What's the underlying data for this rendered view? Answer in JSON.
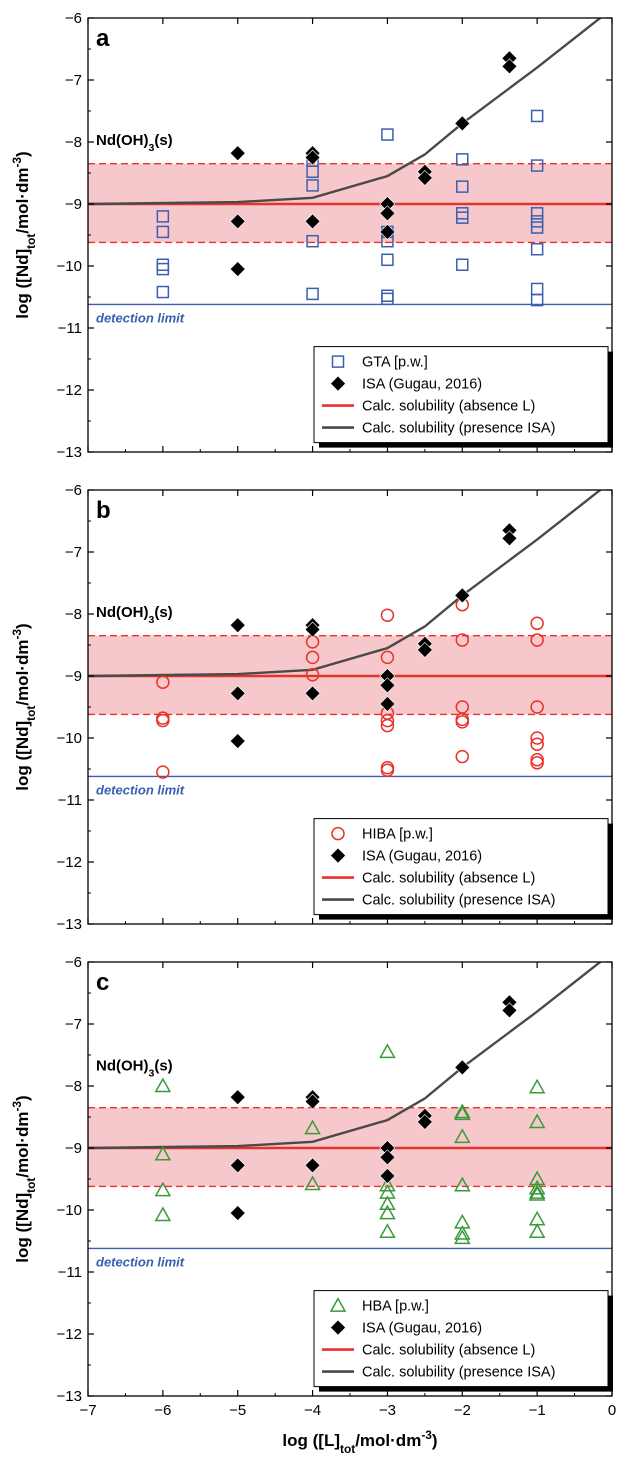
{
  "figure": {
    "xlabel": "log ([L]tot/mol·dm-3)",
    "ylabel": "log ([Nd]tot/mol·dm-3)",
    "colors": {
      "band": "#f6c8cc",
      "red_line": "#e8332a",
      "calc_presence": "#4a4a4a",
      "detection": "#3a5fb0",
      "isa": "#000000",
      "gta": "#3a5fb0",
      "hiba": "#e8332a",
      "hba": "#3a9a3a"
    }
  },
  "chart_data": [
    {
      "type": "scatter",
      "panel_label": "a",
      "xlim": [
        -7,
        0
      ],
      "ylim": [
        -13,
        -6
      ],
      "x_ticks": [
        -7,
        -6,
        -5,
        -4,
        -3,
        -2,
        -1,
        0
      ],
      "y_ticks": [
        -6,
        -7,
        -8,
        -9,
        -10,
        -11,
        -12,
        -13
      ],
      "annotations": {
        "solid_phase": "Nd(OH)3(s)",
        "detection_limit": "detection limit"
      },
      "reference_lines": {
        "calc_absence": -9.0,
        "band_upper": -8.35,
        "band_lower": -9.62,
        "detection_limit": -10.62
      },
      "legend_position": "bottom-right",
      "series": [
        {
          "name": "GTA [p.w.]",
          "marker": "square-open",
          "color": "#3a5fb0",
          "points": [
            [
              -6,
              -9.2
            ],
            [
              -6,
              -9.45
            ],
            [
              -6,
              -9.98
            ],
            [
              -6,
              -10.05
            ],
            [
              -6,
              -10.42
            ],
            [
              -4,
              -8.3
            ],
            [
              -4,
              -8.48
            ],
            [
              -4,
              -8.7
            ],
            [
              -4,
              -9.6
            ],
            [
              -4,
              -10.45
            ],
            [
              -3,
              -7.88
            ],
            [
              -3,
              -9.45
            ],
            [
              -3,
              -9.6
            ],
            [
              -3,
              -9.9
            ],
            [
              -3,
              -10.48
            ],
            [
              -3,
              -10.53
            ],
            [
              -2,
              -8.28
            ],
            [
              -2,
              -8.72
            ],
            [
              -2,
              -9.15
            ],
            [
              -2,
              -9.22
            ],
            [
              -2,
              -9.98
            ],
            [
              -1,
              -7.58
            ],
            [
              -1,
              -8.38
            ],
            [
              -1,
              -9.15
            ],
            [
              -1,
              -9.28
            ],
            [
              -1,
              -9.38
            ],
            [
              -1,
              -9.73
            ],
            [
              -1,
              -10.37
            ],
            [
              -1,
              -10.55
            ]
          ]
        },
        {
          "name": "ISA (Gugau, 2016)",
          "marker": "diamond-filled",
          "color": "#000000",
          "points": [
            [
              -5,
              -8.18
            ],
            [
              -5,
              -9.28
            ],
            [
              -5,
              -10.05
            ],
            [
              -4,
              -8.18
            ],
            [
              -4,
              -8.25
            ],
            [
              -4,
              -9.28
            ],
            [
              -3,
              -9.0
            ],
            [
              -3,
              -9.15
            ],
            [
              -3,
              -9.45
            ],
            [
              -2.5,
              -8.48
            ],
            [
              -2.5,
              -8.58
            ],
            [
              -2,
              -7.7
            ],
            [
              -1.37,
              -6.65
            ],
            [
              -1.37,
              -6.78
            ]
          ]
        },
        {
          "name": "Calc. solubility (absence L)",
          "kind": "line",
          "color": "#e8332a",
          "points": [
            [
              -7,
              -9.0
            ],
            [
              0,
              -9.0
            ]
          ]
        },
        {
          "name": "Calc. solubility (presence ISA)",
          "kind": "line",
          "color": "#4a4a4a",
          "points": [
            [
              -7,
              -9.0
            ],
            [
              -5,
              -8.97
            ],
            [
              -4,
              -8.9
            ],
            [
              -3,
              -8.55
            ],
            [
              -2.5,
              -8.2
            ],
            [
              -2,
              -7.7
            ],
            [
              -1,
              -6.8
            ],
            [
              0,
              -5.85
            ]
          ]
        }
      ]
    },
    {
      "type": "scatter",
      "panel_label": "b",
      "xlim": [
        -7,
        0
      ],
      "ylim": [
        -13,
        -6
      ],
      "x_ticks": [
        -7,
        -6,
        -5,
        -4,
        -3,
        -2,
        -1,
        0
      ],
      "y_ticks": [
        -6,
        -7,
        -8,
        -9,
        -10,
        -11,
        -12,
        -13
      ],
      "annotations": {
        "solid_phase": "Nd(OH)3(s)",
        "detection_limit": "detection limit"
      },
      "reference_lines": {
        "calc_absence": -9.0,
        "band_upper": -8.35,
        "band_lower": -9.62,
        "detection_limit": -10.62
      },
      "legend_position": "bottom-right",
      "series": [
        {
          "name": "HIBA [p.w.]",
          "marker": "circle-open",
          "color": "#e8332a",
          "points": [
            [
              -6,
              -9.1
            ],
            [
              -6,
              -9.68
            ],
            [
              -6,
              -9.72
            ],
            [
              -6,
              -10.55
            ],
            [
              -4,
              -8.45
            ],
            [
              -4,
              -8.7
            ],
            [
              -4,
              -8.98
            ],
            [
              -3,
              -8.02
            ],
            [
              -3,
              -8.7
            ],
            [
              -3,
              -9.6
            ],
            [
              -3,
              -9.72
            ],
            [
              -3,
              -9.8
            ],
            [
              -3,
              -10.48
            ],
            [
              -3,
              -10.52
            ],
            [
              -2,
              -7.85
            ],
            [
              -2,
              -8.42
            ],
            [
              -2,
              -9.5
            ],
            [
              -2,
              -9.7
            ],
            [
              -2,
              -9.74
            ],
            [
              -2,
              -10.3
            ],
            [
              -1,
              -8.15
            ],
            [
              -1,
              -8.42
            ],
            [
              -1,
              -9.5
            ],
            [
              -1,
              -10.0
            ],
            [
              -1,
              -10.1
            ],
            [
              -1,
              -10.35
            ],
            [
              -1,
              -10.4
            ]
          ]
        },
        {
          "name": "ISA (Gugau, 2016)",
          "marker": "diamond-filled",
          "color": "#000000",
          "points": [
            [
              -5,
              -8.18
            ],
            [
              -5,
              -9.28
            ],
            [
              -5,
              -10.05
            ],
            [
              -4,
              -8.18
            ],
            [
              -4,
              -8.25
            ],
            [
              -4,
              -9.28
            ],
            [
              -3,
              -9.0
            ],
            [
              -3,
              -9.15
            ],
            [
              -3,
              -9.45
            ],
            [
              -2.5,
              -8.48
            ],
            [
              -2.5,
              -8.58
            ],
            [
              -2,
              -7.7
            ],
            [
              -1.37,
              -6.65
            ],
            [
              -1.37,
              -6.78
            ]
          ]
        },
        {
          "name": "Calc. solubility (absence L)",
          "kind": "line",
          "color": "#e8332a",
          "points": [
            [
              -7,
              -9.0
            ],
            [
              0,
              -9.0
            ]
          ]
        },
        {
          "name": "Calc. solubility (presence ISA)",
          "kind": "line",
          "color": "#4a4a4a",
          "points": [
            [
              -7,
              -9.0
            ],
            [
              -5,
              -8.97
            ],
            [
              -4,
              -8.9
            ],
            [
              -3,
              -8.55
            ],
            [
              -2.5,
              -8.2
            ],
            [
              -2,
              -7.7
            ],
            [
              -1,
              -6.8
            ],
            [
              0,
              -5.85
            ]
          ]
        }
      ]
    },
    {
      "type": "scatter",
      "panel_label": "c",
      "xlim": [
        -7,
        0
      ],
      "ylim": [
        -13,
        -6
      ],
      "x_ticks": [
        -7,
        -6,
        -5,
        -4,
        -3,
        -2,
        -1,
        0
      ],
      "y_ticks": [
        -6,
        -7,
        -8,
        -9,
        -10,
        -11,
        -12,
        -13
      ],
      "annotations": {
        "solid_phase": "Nd(OH)3(s)",
        "detection_limit": "detection limit"
      },
      "reference_lines": {
        "calc_absence": -9.0,
        "band_upper": -8.35,
        "band_lower": -9.62,
        "detection_limit": -10.62
      },
      "legend_position": "bottom-right",
      "series": [
        {
          "name": "HBA [p.w.]",
          "marker": "triangle-open",
          "color": "#3a9a3a",
          "points": [
            [
              -6,
              -8.0
            ],
            [
              -6,
              -9.1
            ],
            [
              -6,
              -9.68
            ],
            [
              -6,
              -10.08
            ],
            [
              -4,
              -8.68
            ],
            [
              -4,
              -9.58
            ],
            [
              -3,
              -7.45
            ],
            [
              -3,
              -9.6
            ],
            [
              -3,
              -9.72
            ],
            [
              -3,
              -9.9
            ],
            [
              -3,
              -10.05
            ],
            [
              -3,
              -10.35
            ],
            [
              -2,
              -8.42
            ],
            [
              -2,
              -8.45
            ],
            [
              -2,
              -8.82
            ],
            [
              -2,
              -9.6
            ],
            [
              -2,
              -10.2
            ],
            [
              -2,
              -10.38
            ],
            [
              -2,
              -10.45
            ],
            [
              -1,
              -8.02
            ],
            [
              -1,
              -8.58
            ],
            [
              -1,
              -9.5
            ],
            [
              -1,
              -9.65
            ],
            [
              -1,
              -9.72
            ],
            [
              -1,
              -9.75
            ],
            [
              -1,
              -10.15
            ],
            [
              -1,
              -10.35
            ]
          ]
        },
        {
          "name": "ISA (Gugau, 2016)",
          "marker": "diamond-filled",
          "color": "#000000",
          "points": [
            [
              -5,
              -8.18
            ],
            [
              -5,
              -9.28
            ],
            [
              -5,
              -10.05
            ],
            [
              -4,
              -8.18
            ],
            [
              -4,
              -8.25
            ],
            [
              -4,
              -9.28
            ],
            [
              -3,
              -9.0
            ],
            [
              -3,
              -9.15
            ],
            [
              -3,
              -9.45
            ],
            [
              -2.5,
              -8.48
            ],
            [
              -2.5,
              -8.58
            ],
            [
              -2,
              -7.7
            ],
            [
              -1.37,
              -6.65
            ],
            [
              -1.37,
              -6.78
            ]
          ]
        },
        {
          "name": "Calc. solubility (absence L)",
          "kind": "line",
          "color": "#e8332a",
          "points": [
            [
              -7,
              -9.0
            ],
            [
              0,
              -9.0
            ]
          ]
        },
        {
          "name": "Calc. solubility (presence ISA)",
          "kind": "line",
          "color": "#4a4a4a",
          "points": [
            [
              -7,
              -9.0
            ],
            [
              -5,
              -8.97
            ],
            [
              -4,
              -8.9
            ],
            [
              -3,
              -8.55
            ],
            [
              -2.5,
              -8.2
            ],
            [
              -2,
              -7.7
            ],
            [
              -1,
              -6.8
            ],
            [
              0,
              -5.85
            ]
          ]
        }
      ]
    }
  ]
}
